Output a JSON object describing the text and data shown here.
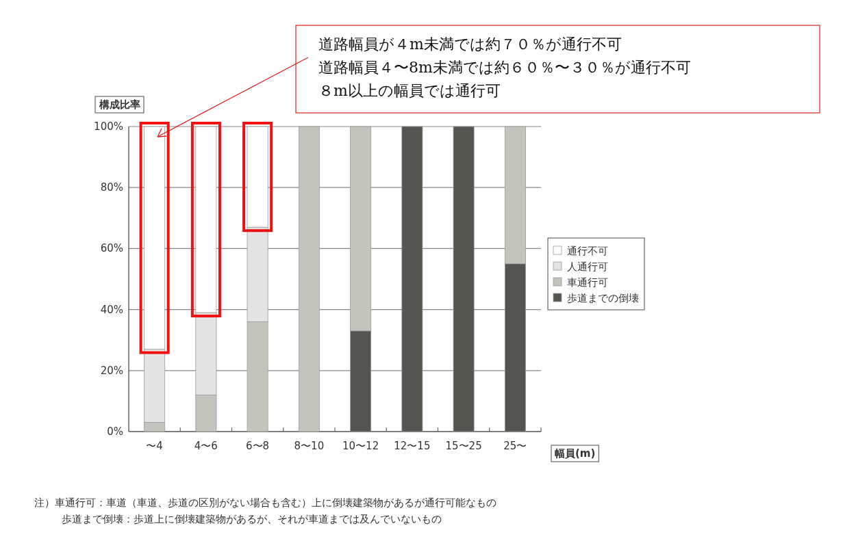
{
  "chart_data": {
    "type": "bar",
    "stacked": true,
    "ylabel": "構成比率",
    "xlabel": "幅員(m)",
    "categories": [
      "〜4",
      "4〜6",
      "6〜8",
      "8〜10",
      "10〜12",
      "12〜15",
      "15〜25",
      "25〜"
    ],
    "series": [
      {
        "name": "歩道までの倒壊",
        "color": "#55554f",
        "values": [
          0,
          0,
          0,
          0,
          33,
          100,
          100,
          55
        ]
      },
      {
        "name": "車通行可",
        "color": "#c4c4bc",
        "values": [
          3,
          12,
          36,
          100,
          67,
          0,
          0,
          45
        ]
      },
      {
        "name": "人通行可",
        "color": "#e4e4e4",
        "values": [
          24,
          27,
          31,
          0,
          0,
          0,
          0,
          0
        ]
      },
      {
        "name": "通行不可",
        "color": "#ffffff",
        "values": [
          73,
          61,
          33,
          0,
          0,
          0,
          0,
          0
        ]
      }
    ],
    "ylim": [
      0,
      100
    ],
    "yticks": [
      {
        "value": 0,
        "label": "0%"
      },
      {
        "value": 20,
        "label": "20%"
      },
      {
        "value": 40,
        "label": "40%"
      },
      {
        "value": 60,
        "label": "60%"
      },
      {
        "value": 80,
        "label": "80%"
      },
      {
        "value": 100,
        "label": "100%"
      }
    ],
    "grid": "y",
    "legend": "right",
    "annotations": [
      "道路幅員が４m未満では約７０％が通行不可",
      "道路幅員４〜8m未満では約６０％〜３０％が通行不可",
      "８m以上の幅員では通行可",
      "注）車通行可：車道（車道、歩道の区別がない場合も含む）上に倒壊建築物があるが通行可能なもの",
      "歩道まで倒壊：歩道上に倒壊建築物があるが、それが車道までは及んでいないもの"
    ]
  }
}
